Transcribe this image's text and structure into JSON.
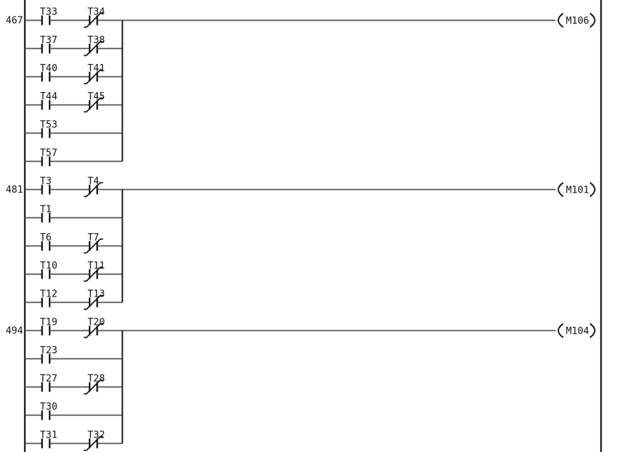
{
  "app": {
    "view": "ladder-diagram"
  },
  "colors": {
    "background": "#ffffff",
    "rail": "#1a1a1a",
    "wire": "#4d4d4d",
    "symbol": "#111111",
    "text": "#111111"
  },
  "diagram": {
    "type": "plc-ladder",
    "rungs": [
      {
        "number": "467",
        "coil": "M106",
        "rows": [
          {
            "contacts": [
              {
                "label": "T33",
                "type": "no"
              },
              {
                "label": "T34",
                "type": "nc"
              }
            ]
          },
          {
            "contacts": [
              {
                "label": "T37",
                "type": "no"
              },
              {
                "label": "T38",
                "type": "nc"
              }
            ]
          },
          {
            "contacts": [
              {
                "label": "T40",
                "type": "no"
              },
              {
                "label": "T41",
                "type": "nc"
              }
            ]
          },
          {
            "contacts": [
              {
                "label": "T44",
                "type": "no"
              },
              {
                "label": "T45",
                "type": "nc"
              }
            ]
          },
          {
            "contacts": [
              {
                "label": "T53",
                "type": "no"
              }
            ]
          },
          {
            "contacts": [
              {
                "label": "T57",
                "type": "no"
              }
            ]
          }
        ]
      },
      {
        "number": "481",
        "coil": "M101",
        "rows": [
          {
            "contacts": [
              {
                "label": "T3",
                "type": "no"
              },
              {
                "label": "T4",
                "type": "nc"
              }
            ]
          },
          {
            "contacts": [
              {
                "label": "T1",
                "type": "no"
              }
            ]
          },
          {
            "contacts": [
              {
                "label": "T6",
                "type": "no"
              },
              {
                "label": "T7",
                "type": "nc"
              }
            ]
          },
          {
            "contacts": [
              {
                "label": "T10",
                "type": "no"
              },
              {
                "label": "T11",
                "type": "nc"
              }
            ]
          },
          {
            "contacts": [
              {
                "label": "T12",
                "type": "no"
              },
              {
                "label": "T13",
                "type": "nc"
              }
            ]
          }
        ]
      },
      {
        "number": "494",
        "coil": "M104",
        "rows": [
          {
            "contacts": [
              {
                "label": "T19",
                "type": "no"
              },
              {
                "label": "T20",
                "type": "nc"
              }
            ]
          },
          {
            "contacts": [
              {
                "label": "T23",
                "type": "no"
              }
            ]
          },
          {
            "contacts": [
              {
                "label": "T27",
                "type": "no"
              },
              {
                "label": "T28",
                "type": "nc"
              }
            ]
          },
          {
            "contacts": [
              {
                "label": "T30",
                "type": "no"
              }
            ]
          },
          {
            "contacts": [
              {
                "label": "T31",
                "type": "no"
              },
              {
                "label": "T32",
                "type": "nc"
              }
            ]
          }
        ]
      }
    ]
  }
}
